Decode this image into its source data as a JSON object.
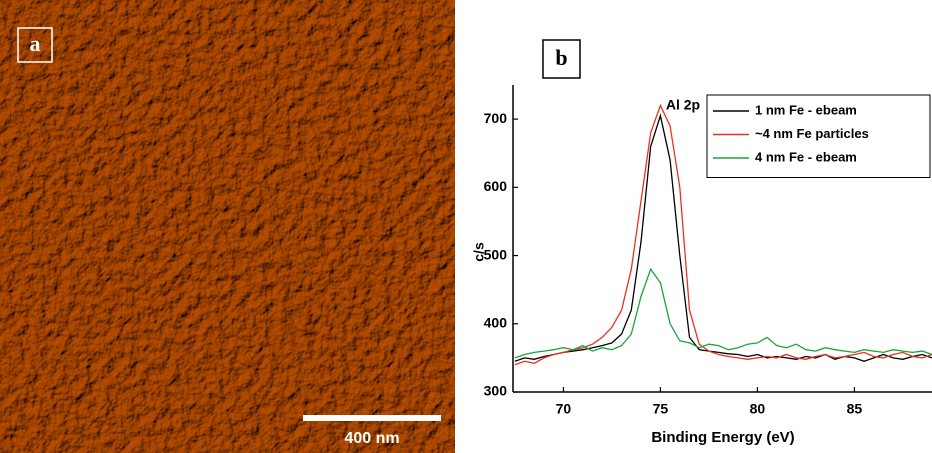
{
  "panel_a": {
    "label": "a",
    "scale_bar": "400 nm"
  },
  "chart_data": {
    "type": "line",
    "panel_label": "b",
    "annotation": "Al 2p",
    "x_label": "Binding Energy (eV)",
    "y_label": "c/s",
    "xlim": [
      67.4,
      89
    ],
    "ylim": [
      300,
      750
    ],
    "xticks": [
      70,
      75,
      80,
      85
    ],
    "yticks": [
      300,
      400,
      500,
      600,
      700
    ],
    "legend": "upper right",
    "x": [
      67.5,
      68,
      68.5,
      69,
      69.5,
      70,
      70.5,
      71,
      71.5,
      72,
      72.5,
      73,
      73.5,
      74,
      74.5,
      75,
      75.5,
      76,
      76.5,
      77,
      77.5,
      78,
      78.5,
      79,
      79.5,
      80,
      80.5,
      81,
      81.5,
      82,
      82.5,
      83,
      83.5,
      84,
      84.5,
      85,
      85.5,
      86,
      86.5,
      87,
      87.5,
      88,
      88.5,
      89
    ],
    "series": [
      {
        "name": "1 nm Fe - ebeam",
        "color": "#000000",
        "values": [
          345,
          350,
          348,
          352,
          355,
          358,
          360,
          362,
          365,
          368,
          372,
          385,
          420,
          520,
          660,
          705,
          640,
          500,
          380,
          362,
          360,
          358,
          356,
          355,
          352,
          355,
          350,
          352,
          350,
          348,
          352,
          350,
          355,
          348,
          352,
          350,
          345,
          350,
          355,
          350,
          348,
          352,
          355,
          350
        ]
      },
      {
        "name": "~4 nm Fe particles",
        "color": "#e8321e",
        "values": [
          340,
          345,
          342,
          350,
          355,
          358,
          362,
          365,
          370,
          380,
          395,
          420,
          480,
          580,
          680,
          720,
          690,
          600,
          420,
          370,
          360,
          355,
          352,
          350,
          348,
          350,
          352,
          350,
          355,
          350,
          348,
          352,
          355,
          350,
          352,
          355,
          358,
          352,
          350,
          355,
          358,
          352,
          350,
          355
        ]
      },
      {
        "name": "4 nm Fe - ebeam",
        "color": "#1aa63a",
        "values": [
          350,
          355,
          358,
          360,
          362,
          365,
          362,
          368,
          360,
          365,
          362,
          368,
          385,
          440,
          480,
          460,
          400,
          375,
          372,
          365,
          370,
          368,
          362,
          365,
          370,
          372,
          380,
          368,
          365,
          370,
          362,
          360,
          365,
          362,
          360,
          358,
          362,
          360,
          358,
          362,
          360,
          358,
          360,
          355
        ]
      }
    ]
  }
}
